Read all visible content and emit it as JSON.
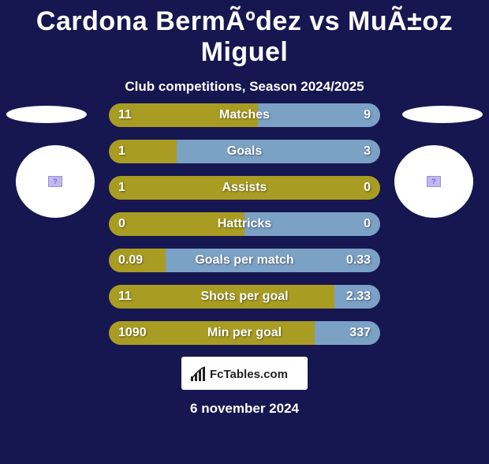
{
  "title": "Cardona BermÃºdez vs MuÃ±oz Miguel",
  "subtitle": "Club competitions, Season 2024/2025",
  "date": "6 november 2024",
  "logo_text": "FcTables.com",
  "colors": {
    "bg": "#161650",
    "seg_left": "#a99c22",
    "seg_right": "#7ba1c5"
  },
  "bars": [
    {
      "label": "Matches",
      "left": "11",
      "right": "9",
      "left_pct": 55
    },
    {
      "label": "Goals",
      "left": "1",
      "right": "3",
      "left_pct": 25
    },
    {
      "label": "Assists",
      "left": "1",
      "right": "0",
      "left_pct": 100
    },
    {
      "label": "Hattricks",
      "left": "0",
      "right": "0",
      "left_pct": 50
    },
    {
      "label": "Goals per match",
      "left": "0.09",
      "right": "0.33",
      "left_pct": 21
    },
    {
      "label": "Shots per goal",
      "left": "11",
      "right": "2.33",
      "left_pct": 83
    },
    {
      "label": "Min per goal",
      "left": "1090",
      "right": "337",
      "left_pct": 76
    }
  ]
}
